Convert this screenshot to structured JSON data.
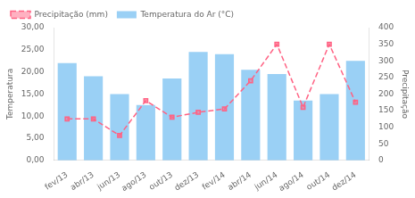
{
  "chart_data": {
    "type": "bar",
    "categories": [
      "fev/13",
      "abr/13",
      "jun/13",
      "ago/13",
      "out/13",
      "dez/13",
      "fev/14",
      "abr/14",
      "jun/14",
      "ago/14",
      "out/14",
      "dez/14"
    ],
    "series": [
      {
        "name": "Temperatura do Ar (°C)",
        "type": "bar",
        "values": [
          22,
          19,
          15,
          12.5,
          18.5,
          24.5,
          24,
          20.5,
          19.5,
          13.5,
          15,
          22.5
        ]
      },
      {
        "name": "Precipitação (mm)",
        "type": "line",
        "axis": "y2",
        "line_style": "dashed",
        "marker": "square",
        "values": [
          125,
          125,
          75,
          180,
          130,
          145,
          155,
          240,
          350,
          160,
          350,
          175
        ]
      }
    ],
    "ylabel": "Temperatura",
    "y2label": "Precipitação",
    "ylim": [
      0,
      30
    ],
    "yticks": [
      {
        "value": 0,
        "label": "0,00"
      },
      {
        "value": 5,
        "label": "5,00"
      },
      {
        "value": 10,
        "label": "10,00"
      },
      {
        "value": 15,
        "label": "15,00"
      },
      {
        "value": 20,
        "label": "20,00"
      },
      {
        "value": 25,
        "label": "25,00"
      },
      {
        "value": 30,
        "label": "30,00"
      }
    ],
    "y2lim": [
      0,
      400
    ],
    "y2ticks": [
      0,
      50,
      100,
      150,
      200,
      250,
      300,
      350,
      400
    ],
    "grid": false,
    "legend": "upper left"
  }
}
